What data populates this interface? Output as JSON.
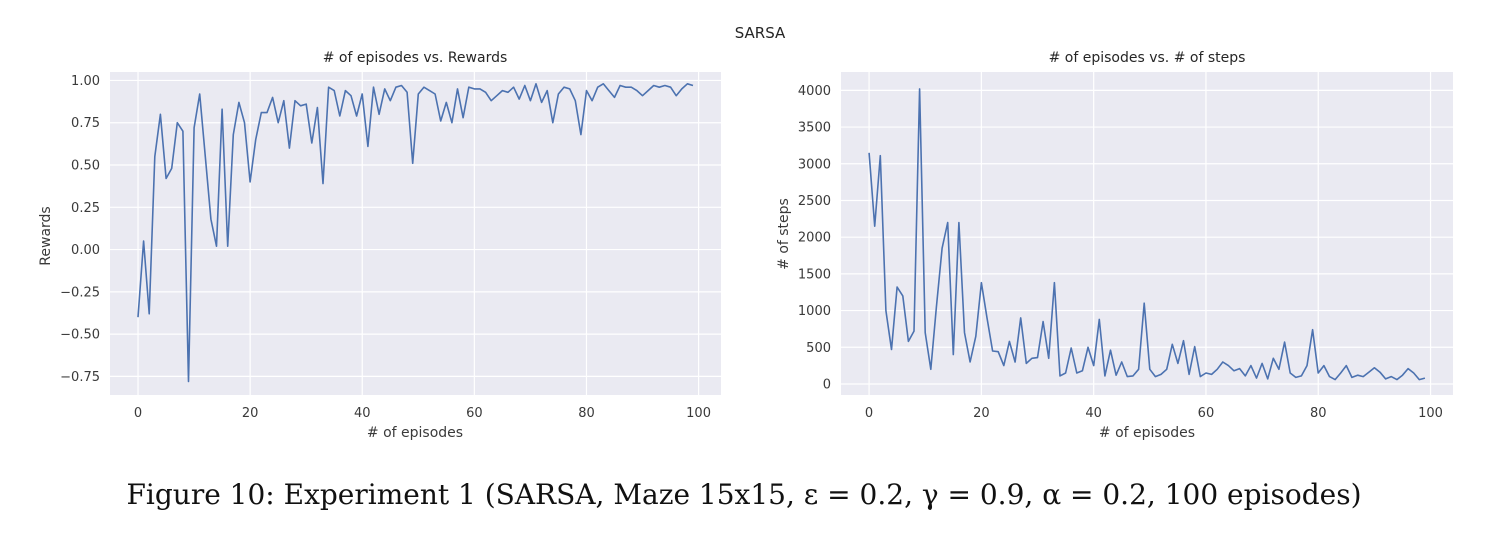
{
  "figure": {
    "suptitle": "SARSA",
    "caption": "Figure 10: Experiment 1 (SARSA, Maze 15x15, ε = 0.2, γ = 0.9, α = 0.2, 100 episodes)"
  },
  "chart_data": [
    {
      "type": "line",
      "title": "# of episodes vs. Rewards",
      "xlabel": "# of episodes",
      "ylabel": "Rewards",
      "xlim": [
        -5,
        104
      ],
      "ylim": [
        -0.86,
        1.05
      ],
      "xticks": [
        0,
        20,
        40,
        60,
        80,
        100
      ],
      "yticks": [
        -0.75,
        -0.5,
        -0.25,
        0.0,
        0.25,
        0.5,
        0.75,
        1.0
      ],
      "ytick_labels": [
        "−0.75",
        "−0.50",
        "−0.25",
        "0.00",
        "0.25",
        "0.50",
        "0.75",
        "1.00"
      ],
      "grid": true,
      "series": [
        {
          "color": "#4c72b0",
          "x": [
            0,
            1,
            2,
            3,
            4,
            5,
            6,
            7,
            8,
            9,
            10,
            11,
            12,
            13,
            14,
            15,
            16,
            17,
            18,
            19,
            20,
            21,
            22,
            23,
            24,
            25,
            26,
            27,
            28,
            29,
            30,
            31,
            32,
            33,
            34,
            35,
            36,
            37,
            38,
            39,
            40,
            41,
            42,
            43,
            44,
            45,
            46,
            47,
            48,
            49,
            50,
            51,
            52,
            53,
            54,
            55,
            56,
            57,
            58,
            59,
            60,
            61,
            62,
            63,
            64,
            65,
            66,
            67,
            68,
            69,
            70,
            71,
            72,
            73,
            74,
            75,
            76,
            77,
            78,
            79,
            80,
            81,
            82,
            83,
            84,
            85,
            86,
            87,
            88,
            89,
            90,
            91,
            92,
            93,
            94,
            95,
            96,
            97,
            98,
            99
          ],
          "y": [
            -0.4,
            0.05,
            -0.38,
            0.55,
            0.8,
            0.42,
            0.48,
            0.75,
            0.7,
            -0.78,
            0.72,
            0.92,
            0.55,
            0.18,
            0.02,
            0.83,
            0.02,
            0.68,
            0.87,
            0.75,
            0.4,
            0.65,
            0.81,
            0.81,
            0.9,
            0.75,
            0.88,
            0.6,
            0.88,
            0.85,
            0.86,
            0.63,
            0.84,
            0.39,
            0.96,
            0.94,
            0.79,
            0.94,
            0.91,
            0.79,
            0.92,
            0.61,
            0.96,
            0.8,
            0.95,
            0.88,
            0.96,
            0.97,
            0.93,
            0.51,
            0.92,
            0.96,
            0.94,
            0.92,
            0.76,
            0.87,
            0.75,
            0.95,
            0.78,
            0.96,
            0.95,
            0.95,
            0.93,
            0.88,
            0.91,
            0.94,
            0.93,
            0.96,
            0.89,
            0.97,
            0.88,
            0.98,
            0.87,
            0.94,
            0.75,
            0.92,
            0.96,
            0.95,
            0.88,
            0.68,
            0.94,
            0.88,
            0.96,
            0.98,
            0.94,
            0.9,
            0.97,
            0.96,
            0.96,
            0.94,
            0.91,
            0.94,
            0.97,
            0.96,
            0.97,
            0.96,
            0.91,
            0.95,
            0.98,
            0.97
          ]
        }
      ]
    },
    {
      "type": "line",
      "title": "# of episodes vs. # of steps",
      "xlabel": "# of episodes",
      "ylabel": "# of steps",
      "xlim": [
        -5,
        104
      ],
      "ylim": [
        -150,
        4250
      ],
      "xticks": [
        0,
        20,
        40,
        60,
        80,
        100
      ],
      "yticks": [
        0,
        500,
        1000,
        1500,
        2000,
        2500,
        3000,
        3500,
        4000
      ],
      "ytick_labels": [
        "0",
        "500",
        "1000",
        "1500",
        "2000",
        "2500",
        "3000",
        "3500",
        "4000"
      ],
      "grid": true,
      "series": [
        {
          "color": "#4c72b0",
          "x": [
            0,
            1,
            2,
            3,
            4,
            5,
            6,
            7,
            8,
            9,
            10,
            11,
            12,
            13,
            14,
            15,
            16,
            17,
            18,
            19,
            20,
            21,
            22,
            23,
            24,
            25,
            26,
            27,
            28,
            29,
            30,
            31,
            32,
            33,
            34,
            35,
            36,
            37,
            38,
            39,
            40,
            41,
            42,
            43,
            44,
            45,
            46,
            47,
            48,
            49,
            50,
            51,
            52,
            53,
            54,
            55,
            56,
            57,
            58,
            59,
            60,
            61,
            62,
            63,
            64,
            65,
            66,
            67,
            68,
            69,
            70,
            71,
            72,
            73,
            74,
            75,
            76,
            77,
            78,
            79,
            80,
            81,
            82,
            83,
            84,
            85,
            86,
            87,
            88,
            89,
            90,
            91,
            92,
            93,
            94,
            95,
            96,
            97,
            98,
            99
          ],
          "y": [
            3150,
            2150,
            3110,
            1000,
            470,
            1320,
            1200,
            580,
            720,
            4020,
            700,
            200,
            1050,
            1850,
            2200,
            400,
            2200,
            700,
            300,
            650,
            1380,
            900,
            450,
            440,
            250,
            580,
            300,
            900,
            280,
            350,
            360,
            850,
            350,
            1380,
            110,
            150,
            490,
            150,
            180,
            500,
            250,
            880,
            110,
            460,
            120,
            300,
            100,
            110,
            200,
            1100,
            200,
            100,
            130,
            200,
            540,
            280,
            590,
            130,
            510,
            100,
            150,
            130,
            200,
            300,
            250,
            180,
            210,
            110,
            250,
            80,
            280,
            70,
            350,
            200,
            570,
            150,
            90,
            110,
            250,
            740,
            150,
            250,
            100,
            60,
            150,
            250,
            90,
            120,
            100,
            160,
            220,
            160,
            70,
            100,
            60,
            120,
            210,
            150,
            60,
            80
          ]
        }
      ]
    }
  ]
}
